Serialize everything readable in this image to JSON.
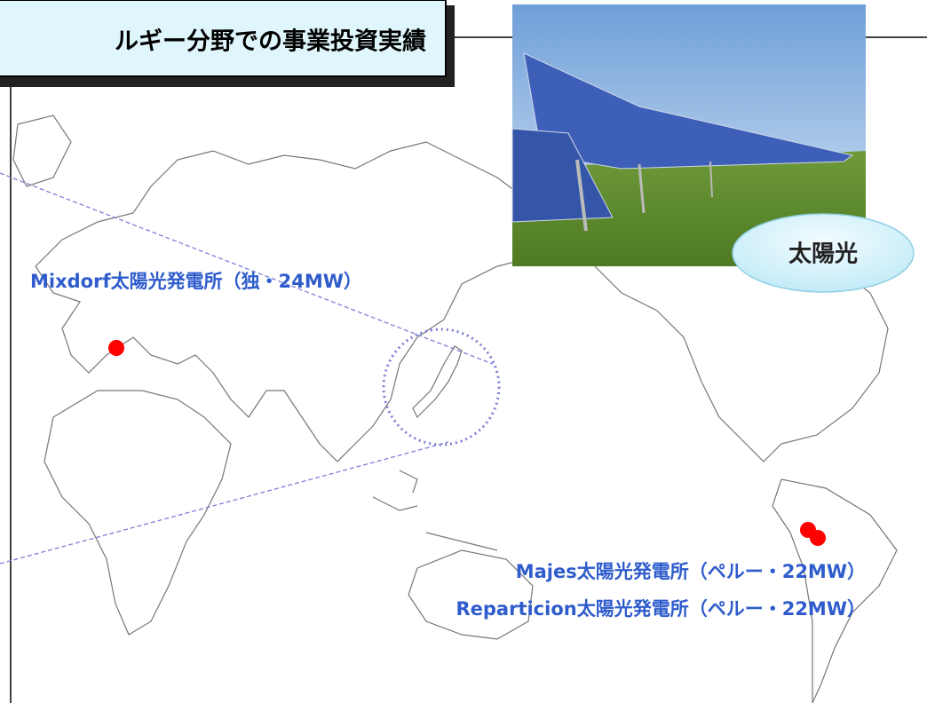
{
  "header": {
    "title": "ルギー分野での事業投資実績"
  },
  "photo": {
    "label": "太陽光"
  },
  "sites": [
    {
      "label": "Mixdorf太陽光発電所（独・24MW）"
    },
    {
      "label": "Majes太陽光発電所（ペルー・22MW）"
    },
    {
      "label": "Reparticion太陽光発電所（ペルー・22MW）"
    }
  ]
}
